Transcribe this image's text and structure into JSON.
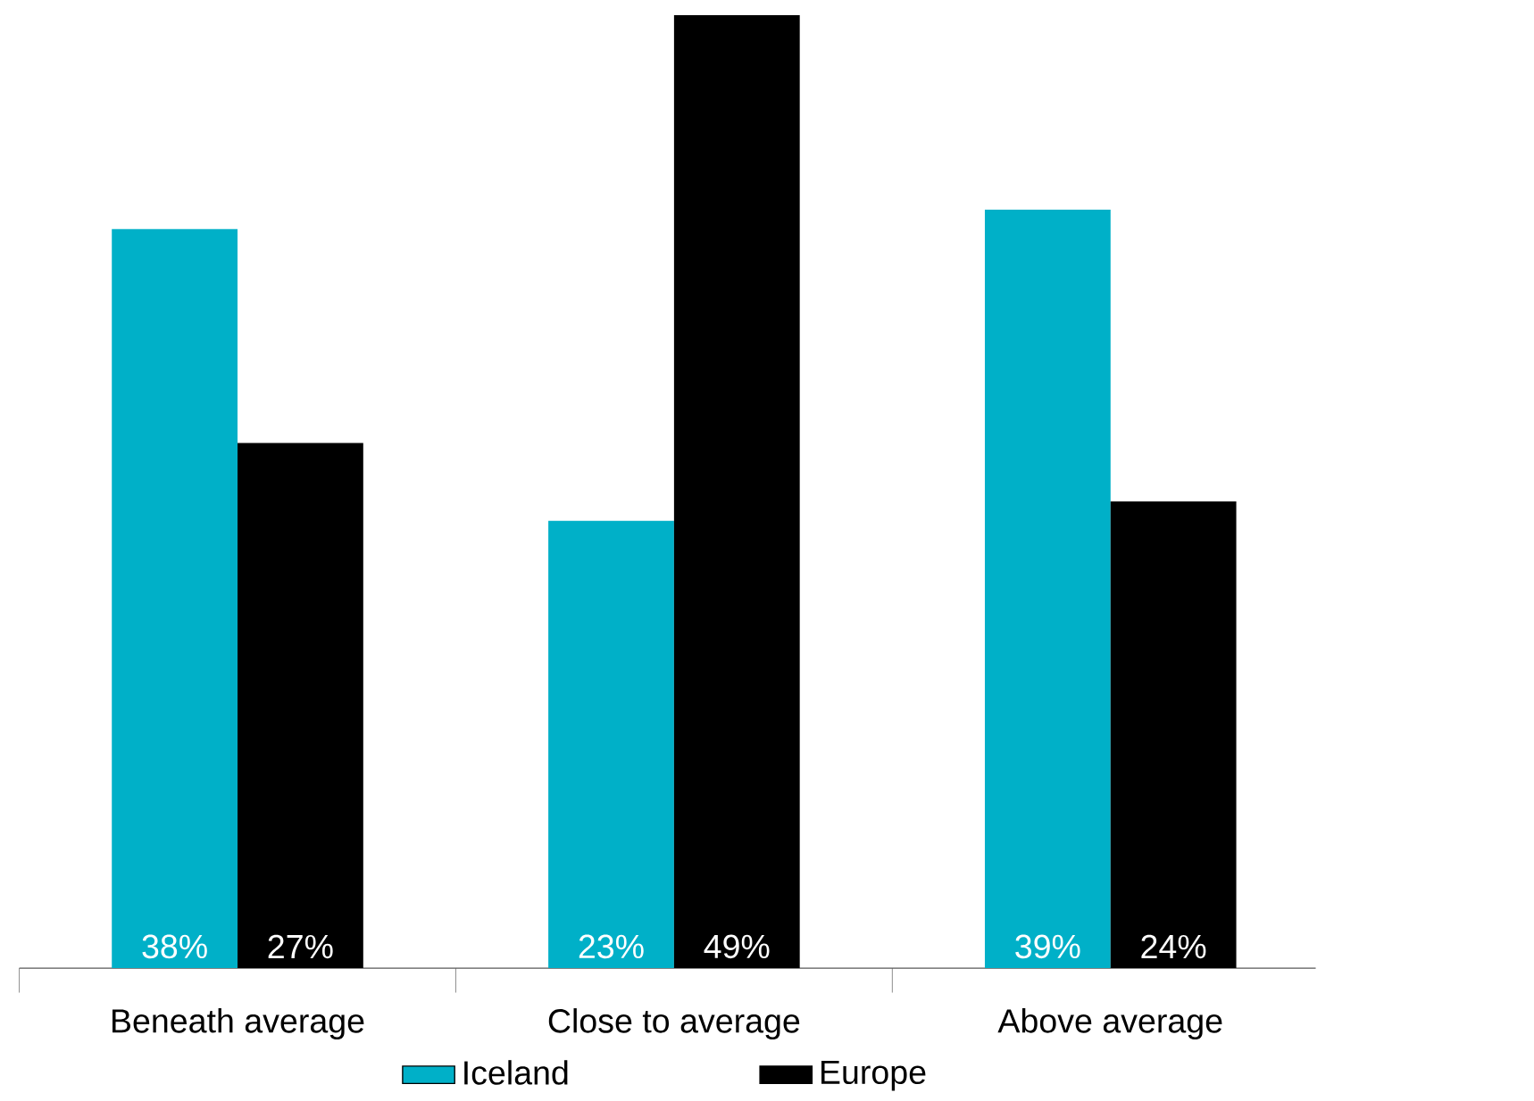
{
  "chart_data": {
    "type": "bar",
    "categories": [
      "Beneath average",
      "Close to average",
      "Above average"
    ],
    "series": [
      {
        "name": "Iceland",
        "color": "#00b0c8",
        "values": [
          38,
          23,
          39
        ],
        "value_labels": [
          "38%",
          "23%",
          "39%"
        ]
      },
      {
        "name": "Europe",
        "color": "#000000",
        "values": [
          27,
          49,
          24
        ],
        "value_labels": [
          "27%",
          "49%",
          "24%"
        ]
      }
    ],
    "legend": "bottom"
  }
}
